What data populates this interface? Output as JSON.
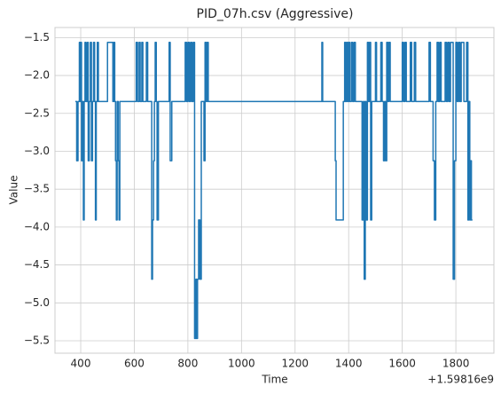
{
  "chart_data": {
    "type": "line",
    "title": "PID_07h.csv (Aggressive)",
    "x_label": "Time",
    "y_label": "Value",
    "x_offset_label": "+1.59816e9",
    "drawstyle": "steps-post",
    "grid": true,
    "xlim": [
      304,
      1942
    ],
    "xticks": [
      400,
      600,
      800,
      1000,
      1200,
      1400,
      1600,
      1800
    ],
    "ylim": [
      -5.664,
      -1.367
    ],
    "yticks": [
      {
        "value": -1.5,
        "label": "−1.5"
      },
      {
        "value": -2.0,
        "label": "−2.0"
      },
      {
        "value": -2.5,
        "label": "−2.5"
      },
      {
        "value": -3.0,
        "label": "−3.0"
      },
      {
        "value": -3.5,
        "label": "−3.5"
      },
      {
        "value": -4.0,
        "label": "−4.0"
      },
      {
        "value": -4.5,
        "label": "−4.5"
      },
      {
        "value": -5.0,
        "label": "−5.0"
      },
      {
        "value": -5.5,
        "label": "−5.5"
      }
    ],
    "x": [
      380,
      385,
      390,
      395,
      398,
      400,
      403,
      406,
      410,
      413,
      416,
      420,
      425,
      428,
      432,
      436,
      440,
      444,
      448,
      452,
      455,
      458,
      462,
      466,
      470,
      500,
      520,
      523,
      527,
      530,
      533,
      536,
      540,
      543,
      546,
      600,
      607,
      612,
      618,
      622,
      628,
      632,
      645,
      650,
      660,
      665,
      668,
      672,
      675,
      678,
      682,
      685,
      690,
      730,
      734,
      740,
      790,
      795,
      800,
      805,
      810,
      815,
      820,
      825,
      830,
      833,
      836,
      840,
      845,
      850,
      860,
      864,
      868,
      872,
      876,
      1300,
      1303,
      1350,
      1353,
      1380,
      1385,
      1388,
      1392,
      1396,
      1400,
      1404,
      1410,
      1415,
      1420,
      1425,
      1450,
      1455,
      1458,
      1462,
      1465,
      1470,
      1474,
      1478,
      1482,
      1486,
      1500,
      1504,
      1520,
      1525,
      1530,
      1534,
      1538,
      1542,
      1546,
      1550,
      1555,
      1600,
      1605,
      1610,
      1615,
      1630,
      1635,
      1645,
      1650,
      1700,
      1705,
      1715,
      1720,
      1725,
      1730,
      1735,
      1740,
      1745,
      1760,
      1765,
      1770,
      1775,
      1780,
      1790,
      1795,
      1800,
      1805,
      1810,
      1815,
      1820,
      1830,
      1840,
      1845,
      1848,
      1852,
      1855,
      1858,
      1862
    ],
    "series": [
      {
        "name": "Value",
        "color": "#1f77b4",
        "values": [
          -2.34375,
          -3.125,
          -2.34375,
          -1.5625,
          -2.34375,
          -1.5625,
          -3.125,
          -2.34375,
          -3.90625,
          -2.34375,
          -1.5625,
          -2.34375,
          -1.5625,
          -3.125,
          -2.34375,
          -1.5625,
          -3.125,
          -2.34375,
          -1.5625,
          -2.34375,
          -3.90625,
          -2.34375,
          -1.5625,
          -2.34375,
          -2.34375,
          -1.5625,
          -2.34375,
          -1.5625,
          -2.34375,
          -3.125,
          -3.90625,
          -2.34375,
          -3.125,
          -3.90625,
          -2.34375,
          -2.34375,
          -1.5625,
          -2.34375,
          -1.5625,
          -2.34375,
          -1.5625,
          -2.34375,
          -1.5625,
          -2.34375,
          -2.34375,
          -4.6875,
          -3.90625,
          -3.125,
          -2.34375,
          -1.5625,
          -2.34375,
          -3.90625,
          -2.34375,
          -1.5625,
          -3.125,
          -2.34375,
          -1.5625,
          -2.34375,
          -1.5625,
          -2.34375,
          -1.5625,
          -2.34375,
          -1.5625,
          -5.46875,
          -4.6875,
          -5.46875,
          -4.6875,
          -3.90625,
          -4.6875,
          -2.34375,
          -3.125,
          -1.5625,
          -2.34375,
          -1.5625,
          -2.34375,
          -1.5625,
          -2.34375,
          -3.125,
          -3.90625,
          -2.34375,
          -1.5625,
          -2.34375,
          -1.5625,
          -2.34375,
          -1.5625,
          -2.34375,
          -1.5625,
          -2.34375,
          -1.5625,
          -2.34375,
          -3.90625,
          -2.34375,
          -4.6875,
          -2.34375,
          -3.90625,
          -1.5625,
          -2.34375,
          -1.5625,
          -3.90625,
          -2.34375,
          -1.5625,
          -2.34375,
          -1.5625,
          -2.34375,
          -3.125,
          -2.34375,
          -3.125,
          -1.5625,
          -2.34375,
          -1.5625,
          -2.34375,
          -1.5625,
          -2.34375,
          -1.5625,
          -2.34375,
          -1.5625,
          -2.34375,
          -1.5625,
          -2.34375,
          -1.5625,
          -2.34375,
          -3.125,
          -3.90625,
          -2.34375,
          -1.5625,
          -2.34375,
          -1.5625,
          -2.34375,
          -1.5625,
          -2.34375,
          -1.5625,
          -2.34375,
          -1.5625,
          -4.6875,
          -3.125,
          -1.5625,
          -2.34375,
          -1.5625,
          -2.34375,
          -1.5625,
          -2.34375,
          -1.5625,
          -3.90625,
          -2.34375,
          -3.90625,
          -3.125,
          -3.90625,
          -3.90625
        ]
      }
    ]
  }
}
